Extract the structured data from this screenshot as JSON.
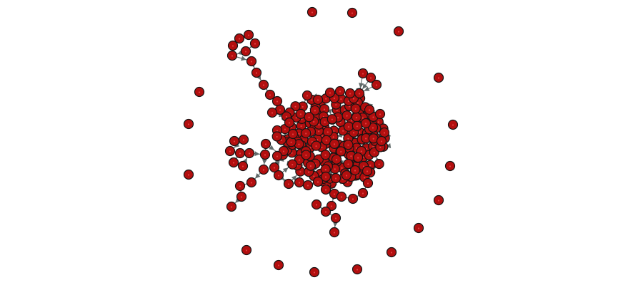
{
  "graph": {
    "node_fill": "#b30f0f",
    "node_stroke": "#141414",
    "node_highlight": "#e04040",
    "edge_color": "#505a5a",
    "arrow_color": "#606a6a",
    "background": "#ffffff"
  }
}
